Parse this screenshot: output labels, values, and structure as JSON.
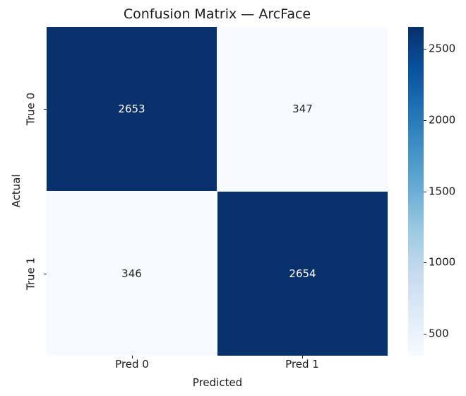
{
  "chart_data": {
    "type": "heatmap",
    "title": "Confusion Matrix — ArcFace",
    "xlabel": "Predicted",
    "ylabel": "Actual",
    "x_ticklabels": [
      "Pred 0",
      "Pred 1"
    ],
    "y_ticklabels": [
      "True 0",
      "True 1"
    ],
    "matrix": [
      [
        2653,
        347
      ],
      [
        346,
        2654
      ]
    ],
    "vmin": 346,
    "vmax": 2654,
    "colormap": "Blues",
    "colormap_stops": [
      "#f7fbff",
      "#deebf7",
      "#c6dbef",
      "#9ecae1",
      "#6baed6",
      "#4292c6",
      "#2171b5",
      "#08519c",
      "#08306b"
    ],
    "colorbar_ticks": [
      500,
      1000,
      1500,
      2000,
      2500
    ],
    "annotation_color_on_dark": "#ffffff",
    "annotation_color_on_light": "#262626",
    "grid_line_color": "#ffffff",
    "legend_position": "colorbar-right",
    "background_color": "#ffffff"
  }
}
